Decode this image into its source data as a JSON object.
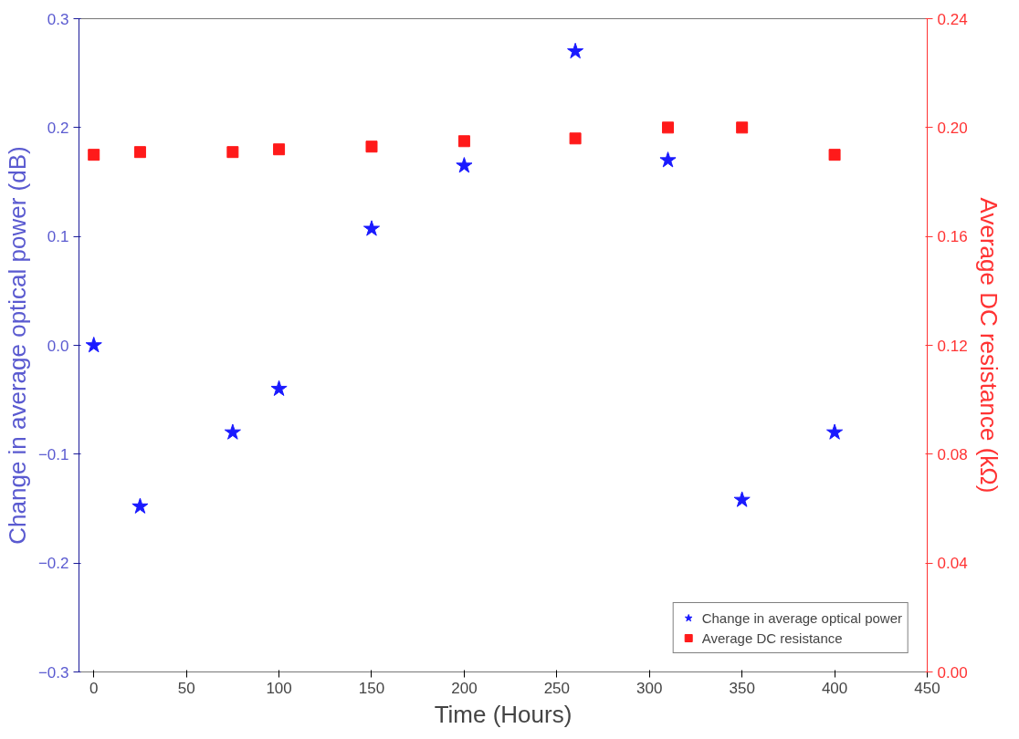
{
  "chart_data": {
    "type": "scatter",
    "xlabel": "Time (Hours)",
    "ylabel": "Change in average optical power (dB)",
    "y2label": "Average DC resistance (kΩ)",
    "xlim": [
      -8,
      450
    ],
    "xticks": [
      0,
      50,
      100,
      150,
      200,
      250,
      300,
      350,
      400,
      450
    ],
    "ylim": [
      -0.3,
      0.3
    ],
    "yticks": [
      -0.3,
      -0.2,
      -0.1,
      {
        "value": 0,
        "label": "0.0"
      },
      0.1,
      0.2,
      0.3
    ],
    "y2lim": [
      0,
      0.24
    ],
    "y2ticks": [
      {
        "value": 0,
        "label": "0.00"
      },
      {
        "value": 0.04,
        "label": "0.04"
      },
      {
        "value": 0.08,
        "label": "0.08"
      },
      {
        "value": 0.12,
        "label": "0.12"
      },
      {
        "value": 0.16,
        "label": "0.16"
      },
      {
        "value": 0.2,
        "label": "0.20"
      },
      {
        "value": 0.24,
        "label": "0.24"
      }
    ],
    "grid": false,
    "legend": "bottom right",
    "series": [
      {
        "name": "Change in average optical power",
        "color": "#1a1aff",
        "marker": "star",
        "x": [
          0,
          25,
          75,
          100,
          150,
          200,
          260,
          310,
          350,
          400
        ],
        "values": [
          0.0,
          -0.148,
          -0.08,
          -0.04,
          0.107,
          0.165,
          0.27,
          0.17,
          -0.142,
          -0.08
        ]
      },
      {
        "name": "Average DC resistance",
        "color": "#ff1a1a",
        "marker": "square",
        "axis": "y2",
        "x": [
          0,
          25,
          75,
          100,
          150,
          200,
          260,
          310,
          350,
          400
        ],
        "values": [
          0.19,
          0.191,
          0.191,
          0.192,
          0.193,
          0.195,
          0.196,
          0.2,
          0.2,
          0.19
        ]
      }
    ]
  }
}
